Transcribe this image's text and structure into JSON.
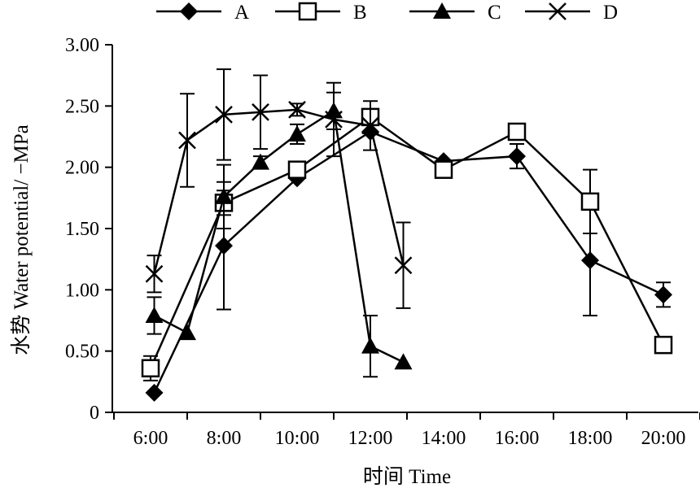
{
  "chart_data": {
    "type": "line",
    "xlabel": "时间 Time",
    "ylabel": "水势 Water potential/ −MPa",
    "ylim": [
      0,
      3
    ],
    "yticks": [
      "0",
      "0.50",
      "1.00",
      "1.50",
      "2.00",
      "2.50",
      "3.00"
    ],
    "ytick_values": [
      0,
      0.5,
      1.0,
      1.5,
      2.0,
      2.5,
      3.0
    ],
    "xticks": [
      "6:00",
      "8:00",
      "10:00",
      "12:00",
      "14:00",
      "16:00",
      "18:00",
      "20:00"
    ],
    "x": [
      6.1,
      7.0,
      8.0,
      9.0,
      10.0,
      11.0,
      12.0,
      12.9,
      14.0,
      15.0,
      15.95,
      17.0,
      18.0,
      19.0,
      20.05
    ],
    "legend_position": "top",
    "grid": false,
    "series": [
      {
        "name": "A",
        "marker": "diamond",
        "points": [
          {
            "x": 6.1,
            "y": 0.16,
            "err": 0
          },
          {
            "x": 8.0,
            "y": 1.36,
            "err": 0.52
          },
          {
            "x": 10.0,
            "y": 1.91,
            "err": 0
          },
          {
            "x": 12.0,
            "y": 2.29,
            "err": 0
          },
          {
            "x": 14.0,
            "y": 2.05,
            "err": 0
          },
          {
            "x": 16.0,
            "y": 2.09,
            "err": 0.1
          },
          {
            "x": 18.0,
            "y": 1.24,
            "err": 0.45
          },
          {
            "x": 20.0,
            "y": 0.96,
            "err": 0.1
          }
        ]
      },
      {
        "name": "B",
        "marker": "square",
        "points": [
          {
            "x": 6.0,
            "y": 0.36,
            "err": 0.1
          },
          {
            "x": 8.0,
            "y": 1.71,
            "err": 0.1
          },
          {
            "x": 10.0,
            "y": 1.98,
            "err": 0
          },
          {
            "x": 12.0,
            "y": 2.41,
            "err": 0
          },
          {
            "x": 14.0,
            "y": 1.98,
            "err": 0
          },
          {
            "x": 16.0,
            "y": 2.29,
            "err": 0
          },
          {
            "x": 18.0,
            "y": 1.72,
            "err": 0.26
          },
          {
            "x": 20.0,
            "y": 0.55,
            "err": 0
          }
        ]
      },
      {
        "name": "C",
        "marker": "triangle",
        "points": [
          {
            "x": 6.1,
            "y": 0.79,
            "err": 0.15
          },
          {
            "x": 7.0,
            "y": 0.65,
            "err": 0
          },
          {
            "x": 8.0,
            "y": 1.76,
            "err": 0.26
          },
          {
            "x": 9.0,
            "y": 2.04,
            "err": 0.05
          },
          {
            "x": 10.0,
            "y": 2.27,
            "err": 0.08
          },
          {
            "x": 11.0,
            "y": 2.46,
            "err": 0.15
          },
          {
            "x": 12.0,
            "y": 0.54,
            "err": 0.25
          },
          {
            "x": 12.9,
            "y": 0.41,
            "err": 0
          }
        ]
      },
      {
        "name": "D",
        "marker": "x",
        "points": [
          {
            "x": 6.1,
            "y": 1.13,
            "err": 0.15
          },
          {
            "x": 7.0,
            "y": 2.22,
            "err": 0.38
          },
          {
            "x": 8.0,
            "y": 2.43,
            "err": 0.37
          },
          {
            "x": 9.0,
            "y": 2.45,
            "err": 0.3
          },
          {
            "x": 10.0,
            "y": 2.47,
            "err": 0.05
          },
          {
            "x": 11.0,
            "y": 2.39,
            "err": 0.3
          },
          {
            "x": 12.0,
            "y": 2.34,
            "err": 0.2
          },
          {
            "x": 12.9,
            "y": 1.2,
            "err": 0.35
          }
        ]
      }
    ]
  }
}
